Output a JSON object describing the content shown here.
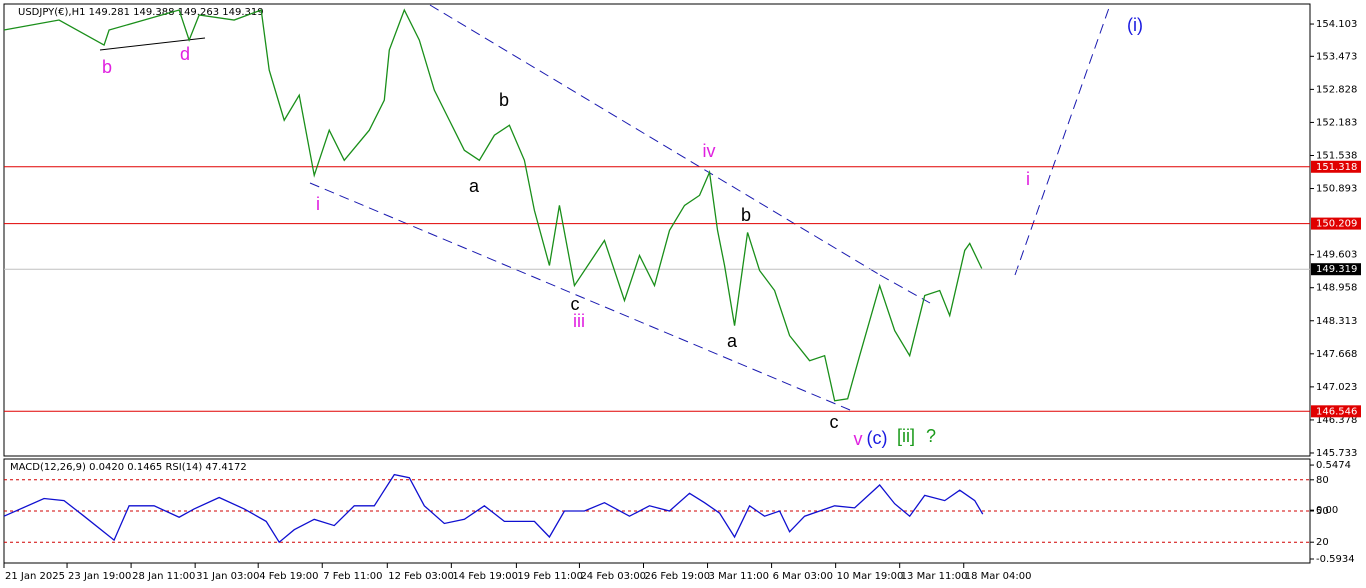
{
  "chart_data": [
    {
      "type": "line",
      "title": "USDJPY(€),H1  149.281 149.388 149.263 149.319",
      "x": [
        0,
        55,
        100,
        105,
        175,
        185,
        195,
        230,
        257,
        265,
        280,
        295,
        310,
        325,
        340,
        365,
        380,
        385,
        400,
        415,
        430,
        445,
        460,
        475,
        490,
        505,
        520,
        530,
        545,
        555,
        570,
        590,
        600,
        620,
        635,
        650,
        665,
        680,
        695,
        705,
        713,
        720,
        730,
        743,
        755,
        770,
        785,
        805,
        820,
        830,
        843,
        855,
        875,
        890,
        905,
        920,
        935,
        945,
        960,
        965,
        977
      ],
      "values": [
        153.986,
        154.181,
        153.692,
        153.986,
        154.377,
        153.79,
        154.279,
        154.181,
        154.377,
        153.204,
        152.226,
        152.715,
        151.151,
        152.031,
        151.444,
        152.031,
        152.617,
        153.595,
        154.377,
        153.79,
        152.813,
        152.226,
        151.64,
        151.444,
        151.933,
        152.128,
        151.444,
        150.467,
        149.391,
        150.564,
        149.0,
        149.587,
        149.88,
        148.707,
        149.587,
        149.0,
        150.076,
        150.564,
        150.76,
        151.21,
        150.076,
        149.391,
        148.218,
        150.037,
        149.294,
        148.903,
        148.023,
        147.534,
        147.632,
        146.752,
        146.791,
        147.632,
        148.997,
        148.121,
        147.632,
        148.805,
        148.903,
        148.414,
        149.685,
        149.822,
        149.333
      ],
      "color": "#1a8f1a",
      "xlim": [
        0,
        1305
      ],
      "ylim": [
        145.674,
        154.494
      ],
      "xticks": [
        {
          "value": 0,
          "label": "21 Jan 2025"
        },
        {
          "value": 63,
          "label": "23 Jan 19:00"
        },
        {
          "value": 127,
          "label": "28 Jan 11:00"
        },
        {
          "value": 191,
          "label": "31 Jan 03:00"
        },
        {
          "value": 254,
          "label": "4 Feb 19:00"
        },
        {
          "value": 318,
          "label": "7 Feb 11:00"
        },
        {
          "value": 383,
          "label": "12 Feb 03:00"
        },
        {
          "value": 447,
          "label": "14 Feb 19:00"
        },
        {
          "value": 512,
          "label": "19 Feb 11:00"
        },
        {
          "value": 575,
          "label": "24 Feb 03:00"
        },
        {
          "value": 639,
          "label": "26 Feb 19:00"
        },
        {
          "value": 703,
          "label": "3 Mar 11:00"
        },
        {
          "value": 767,
          "label": "6 Mar 03:00"
        },
        {
          "value": 831,
          "label": "10 Mar 19:00"
        },
        {
          "value": 895,
          "label": "13 Mar 11:00"
        },
        {
          "value": 959,
          "label": "18 Mar 04:00"
        }
      ],
      "yticks": [
        154.103,
        153.473,
        152.828,
        152.183,
        151.538,
        150.893,
        149.603,
        148.958,
        148.313,
        147.668,
        147.023,
        146.378,
        145.733
      ],
      "hlines": [
        {
          "value": 151.318,
          "color": "#e00000"
        },
        {
          "value": 150.209,
          "color": "#e00000"
        },
        {
          "value": 146.546,
          "color": "#e00000"
        }
      ],
      "current": 149.319,
      "annotations": [
        {
          "text": "b",
          "color": "#e020e0"
        },
        {
          "text": "d",
          "color": "#e020e0"
        },
        {
          "text": "i",
          "color": "#e020e0"
        },
        {
          "text": "a",
          "color": "#000000"
        },
        {
          "text": "b",
          "color": "#000000"
        },
        {
          "text": "c",
          "color": "#000000"
        },
        {
          "text": "iii",
          "color": "#e020e0"
        },
        {
          "text": "iv",
          "color": "#e020e0"
        },
        {
          "text": "b",
          "color": "#000000"
        },
        {
          "text": "a",
          "color": "#000000"
        },
        {
          "text": "c",
          "color": "#000000"
        },
        {
          "text": "v",
          "color": "#e020e0"
        },
        {
          "text": "(c)",
          "color": "#1a1ae0"
        },
        {
          "text": "[ii]",
          "color": "#1a9a1a"
        },
        {
          "text": "?",
          "color": "#1a9a1a"
        },
        {
          "text": "i",
          "color": "#e020e0"
        },
        {
          "text": "(i)",
          "color": "#1a1ae0"
        }
      ]
    },
    {
      "type": "line",
      "title": "MACD(12,26,9) 0.0420 0.1465 RSI(14) 47.4172",
      "x": [
        0,
        40,
        60,
        80,
        110,
        125,
        150,
        175,
        190,
        215,
        240,
        262,
        275,
        290,
        310,
        330,
        350,
        370,
        390,
        405,
        420,
        440,
        460,
        480,
        500,
        530,
        545,
        560,
        580,
        600,
        625,
        645,
        665,
        685,
        700,
        715,
        730,
        745,
        760,
        775,
        785,
        800,
        830,
        850,
        875,
        890,
        905,
        920,
        940,
        955,
        970,
        978
      ],
      "values": [
        45,
        62,
        60,
        45,
        22,
        55,
        55,
        44,
        52,
        63,
        52,
        40,
        20,
        32,
        42,
        36,
        55,
        55,
        85,
        82,
        55,
        38,
        42,
        55,
        40,
        40,
        25,
        50,
        50,
        58,
        45,
        55,
        50,
        67,
        58,
        48,
        25,
        55,
        45,
        50,
        30,
        45,
        55,
        53,
        75,
        57,
        45,
        65,
        60,
        70,
        60,
        47
      ],
      "color": "#1010d0",
      "xlim": [
        0,
        1305
      ],
      "ylim": [
        0,
        100
      ],
      "yticks": [
        80,
        50,
        20
      ],
      "y2lim": [
        -0.642,
        0.621
      ],
      "y2ticks": [
        0.5474,
        {
          "value": 0,
          "label": "0.00"
        },
        -0.5934
      ]
    }
  ]
}
